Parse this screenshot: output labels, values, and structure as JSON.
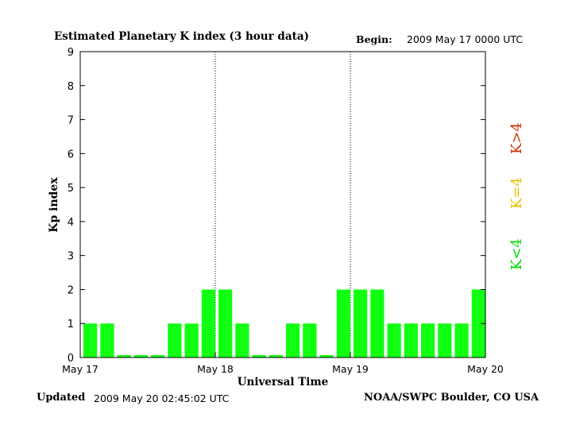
{
  "header": {
    "title": "Estimated Planetary K index (3 hour data)",
    "begin_label": "Begin:",
    "begin_value": "2009 May 17 0000 UTC"
  },
  "footer": {
    "updated_label": "Updated",
    "updated_value": "2009 May 20 02:45:02 UTC",
    "source": "NOAA/SWPC Boulder, CO USA"
  },
  "legend": [
    {
      "label": "K<4",
      "color": "#00dd00"
    },
    {
      "label": "K=4",
      "color": "#e8c000"
    },
    {
      "label": "K>4",
      "color": "#cc3300"
    }
  ],
  "colors": {
    "bar": "#11ff11"
  },
  "chart_data": {
    "type": "bar",
    "title": "Estimated Planetary K index (3 hour data)",
    "xlabel": "Universal Time",
    "ylabel": "Kp index",
    "ylim": [
      0,
      9
    ],
    "yticks": [
      0,
      1,
      2,
      3,
      4,
      5,
      6,
      7,
      8,
      9
    ],
    "xtick_labels": [
      "May 17",
      "May 18",
      "May 19",
      "May 20"
    ],
    "values": [
      1,
      1,
      0,
      0,
      0,
      1,
      1,
      2,
      2,
      1,
      0,
      0,
      1,
      1,
      0,
      2,
      2,
      2,
      1,
      1,
      1,
      1,
      1,
      2
    ],
    "day_dividers": [
      "May 18",
      "May 19"
    ]
  }
}
